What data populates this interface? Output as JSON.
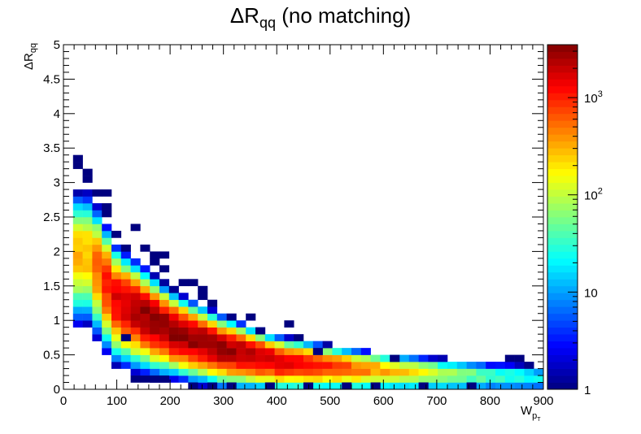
{
  "chart_data": {
    "type": "heatmap",
    "title": {
      "symbol": "ΔR",
      "subscript": "qq",
      "suffix": " (no matching)"
    },
    "xlabel": {
      "main": "W",
      "sub": "p",
      "subsub": "T"
    },
    "ylabel": {
      "symbol": "ΔR",
      "subscript": "qq"
    },
    "xlim": [
      0,
      900
    ],
    "ylim": [
      0,
      5
    ],
    "x_ticks": [
      "0",
      "100",
      "200",
      "300",
      "400",
      "500",
      "600",
      "700",
      "800",
      "900"
    ],
    "y_ticks": [
      "0",
      "0.5",
      "1",
      "1.5",
      "2",
      "2.5",
      "3",
      "3.5",
      "4",
      "4.5",
      "5"
    ],
    "bin_size": {
      "x": 18,
      "y": 0.1
    },
    "colorbar": {
      "scale": "log",
      "range": [
        1,
        3500
      ],
      "tick_values": [
        1,
        10,
        100,
        1000
      ],
      "tick_labels": [
        "1",
        "10",
        "10^2",
        "10^3"
      ],
      "colors": [
        "#00007f",
        "#0000ff",
        "#0080ff",
        "#00ffff",
        "#80ff80",
        "#ffff00",
        "#ff8000",
        "#ff0000",
        "#800000"
      ]
    },
    "grid": false,
    "model": {
      "description_of_band": "ridge",
      "ridge_points": [
        [
          50,
          2.0
        ],
        [
          75,
          1.65
        ],
        [
          100,
          1.32
        ],
        [
          150,
          1.1
        ],
        [
          200,
          0.88
        ],
        [
          300,
          0.6
        ],
        [
          400,
          0.42
        ],
        [
          500,
          0.34
        ],
        [
          600,
          0.28
        ],
        [
          700,
          0.24
        ],
        [
          800,
          0.2
        ],
        [
          900,
          0.18
        ]
      ],
      "peak_counts": [
        [
          50,
          300
        ],
        [
          75,
          1000
        ],
        [
          100,
          1600
        ],
        [
          150,
          3000
        ],
        [
          200,
          3500
        ],
        [
          300,
          3000
        ],
        [
          400,
          2000
        ],
        [
          500,
          900
        ],
        [
          600,
          350
        ],
        [
          700,
          120
        ],
        [
          800,
          40
        ],
        [
          900,
          20
        ]
      ],
      "band_halfwidth": [
        [
          50,
          0.35
        ],
        [
          100,
          0.28
        ],
        [
          200,
          0.2
        ],
        [
          400,
          0.13
        ],
        [
          600,
          0.1
        ],
        [
          900,
          0.09
        ]
      ]
    },
    "extra_bins": [
      [
        27,
        3.25,
        1
      ],
      [
        45,
        3.15,
        1
      ],
      [
        45,
        3.05,
        1
      ],
      [
        63,
        2.85,
        1
      ],
      [
        81,
        2.85,
        1
      ],
      [
        81,
        2.65,
        1
      ],
      [
        81,
        2.55,
        1
      ],
      [
        135,
        2.35,
        1
      ],
      [
        99,
        2.25,
        1
      ],
      [
        117,
        2.05,
        1
      ],
      [
        153,
        2.05,
        1
      ],
      [
        171,
        1.95,
        1
      ],
      [
        189,
        1.95,
        1
      ],
      [
        171,
        1.85,
        1
      ],
      [
        189,
        1.75,
        1
      ],
      [
        225,
        1.55,
        1
      ],
      [
        243,
        1.55,
        1
      ],
      [
        261,
        1.45,
        1
      ],
      [
        261,
        1.35,
        1
      ],
      [
        279,
        1.25,
        1
      ],
      [
        351,
        1.05,
        1
      ],
      [
        423,
        0.95,
        1
      ],
      [
        369,
        0.85,
        1
      ],
      [
        441,
        0.75,
        1
      ],
      [
        477,
        0.55,
        1
      ],
      [
        621,
        0.45,
        1
      ],
      [
        837,
        0.45,
        1
      ],
      [
        855,
        0.45,
        1
      ],
      [
        117,
        0.75,
        1
      ],
      [
        135,
        0.15,
        1
      ],
      [
        153,
        0.15,
        1
      ],
      [
        171,
        0.15,
        1
      ],
      [
        189,
        0.15,
        1
      ],
      [
        243,
        0.05,
        1
      ],
      [
        279,
        0.05,
        1
      ],
      [
        315,
        0.05,
        1
      ],
      [
        387,
        0.05,
        1
      ],
      [
        459,
        0.05,
        1
      ],
      [
        531,
        0.05,
        1
      ],
      [
        585,
        0.05,
        1
      ],
      [
        675,
        0.05,
        1
      ],
      [
        765,
        0.05,
        1
      ],
      [
        27,
        3.35,
        1
      ]
    ]
  }
}
